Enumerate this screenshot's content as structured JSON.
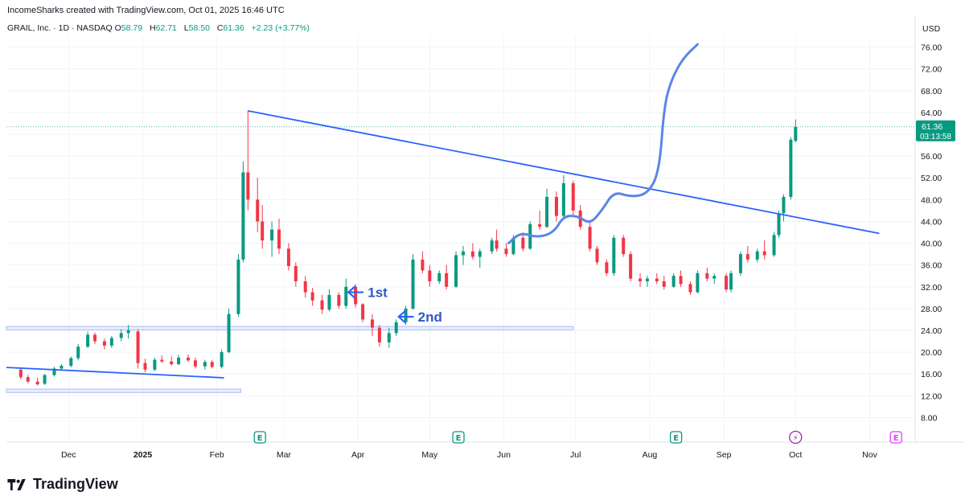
{
  "header": {
    "credit": "IncomeSharks created with TradingView.com, Oct 01, 2025 16:46 UTC"
  },
  "legend": {
    "symbol": "GRAIL, Inc. · 1D · NASDAQ",
    "open_label": "O",
    "open": "58.79",
    "high_label": "H",
    "high": "62.71",
    "low_label": "L",
    "low": "58.50",
    "close_label": "C",
    "close": "61.36",
    "change": "+2.23 (+3.77%)"
  },
  "colors": {
    "up": "#089981",
    "down": "#f23645",
    "drawing": "#2962ff",
    "curve": "#5b86e5",
    "zone": "#b3c5f5"
  },
  "branding": {
    "logo_text": "TradingView",
    "logo_icon": "tradingview-logo-icon"
  },
  "chart_data": {
    "type": "candlestick",
    "currency": "USD",
    "x_ticks": [
      "Dec",
      "2025",
      "Feb",
      "Mar",
      "Apr",
      "May",
      "Jun",
      "Jul",
      "Aug",
      "Sep",
      "Oct",
      "Nov"
    ],
    "y_ticks": [
      "76.00",
      "72.00",
      "68.00",
      "64.00",
      "60.00",
      "56.00",
      "52.00",
      "48.00",
      "44.00",
      "40.00",
      "36.00",
      "32.00",
      "28.00",
      "24.00",
      "20.00",
      "16.00",
      "12.00",
      "8.00"
    ],
    "ylim": [
      6,
      78
    ],
    "last_price": {
      "value": "61.36",
      "countdown": "03:13:58"
    },
    "earnings_markers": [
      {
        "date": "2025-02-19",
        "label": "E"
      },
      {
        "date": "2025-05-13",
        "label": "E"
      },
      {
        "date": "2025-08-12",
        "label": "E"
      },
      {
        "date": "2025-10-01",
        "label": "⚡"
      },
      {
        "date": "2025-11-12",
        "label": "E"
      }
    ],
    "annotations": [
      {
        "text": "1st",
        "date": "2025-03-28",
        "price": 31
      },
      {
        "text": "2nd",
        "date": "2025-04-18",
        "price": 26.5
      }
    ],
    "trendlines": [
      {
        "from": [
          "2025-02-14",
          64.3
        ],
        "to": [
          "2025-11-05",
          41.8
        ]
      },
      {
        "from": [
          "2024-11-05",
          17.2
        ],
        "to": [
          "2025-02-04",
          15.3
        ]
      }
    ],
    "zones": [
      {
        "from": "2024-11-05",
        "to": "2025-06-30",
        "low": 24.1,
        "high": 24.7
      },
      {
        "from": "2024-11-05",
        "to": "2025-02-11",
        "low": 12.6,
        "high": 13.2
      }
    ],
    "projection_path": [
      [
        "2025-06-03",
        40
      ],
      [
        "2025-06-08",
        42
      ],
      [
        "2025-06-15",
        41
      ],
      [
        "2025-06-22",
        42
      ],
      [
        "2025-06-26",
        45
      ],
      [
        "2025-07-02",
        45
      ],
      [
        "2025-07-07",
        43.5
      ],
      [
        "2025-07-12",
        46
      ],
      [
        "2025-07-17",
        49.5
      ],
      [
        "2025-07-24",
        48.5
      ],
      [
        "2025-07-31",
        49
      ],
      [
        "2025-08-05",
        53
      ],
      [
        "2025-08-07",
        65
      ],
      [
        "2025-08-10",
        70
      ],
      [
        "2025-08-15",
        74
      ],
      [
        "2025-08-21",
        76.5
      ]
    ],
    "candles": [
      {
        "d": "2024-11-11",
        "o": 16.8,
        "h": 17.2,
        "l": 15.0,
        "c": 15.4
      },
      {
        "d": "2024-11-14",
        "o": 15.4,
        "h": 15.8,
        "l": 14.3,
        "c": 14.6
      },
      {
        "d": "2024-11-18",
        "o": 14.6,
        "h": 15.3,
        "l": 13.9,
        "c": 14.1
      },
      {
        "d": "2024-11-21",
        "o": 14.2,
        "h": 16.0,
        "l": 14.0,
        "c": 15.8
      },
      {
        "d": "2024-11-25",
        "o": 15.8,
        "h": 17.3,
        "l": 15.5,
        "c": 17.0
      },
      {
        "d": "2024-11-28",
        "o": 17.0,
        "h": 17.8,
        "l": 16.6,
        "c": 17.5
      },
      {
        "d": "2024-12-02",
        "o": 17.5,
        "h": 19.2,
        "l": 17.2,
        "c": 18.9
      },
      {
        "d": "2024-12-05",
        "o": 18.9,
        "h": 21.5,
        "l": 18.5,
        "c": 21.0
      },
      {
        "d": "2024-12-09",
        "o": 21.0,
        "h": 23.8,
        "l": 20.8,
        "c": 23.2
      },
      {
        "d": "2024-12-12",
        "o": 23.2,
        "h": 23.6,
        "l": 21.5,
        "c": 22.0
      },
      {
        "d": "2024-12-16",
        "o": 22.0,
        "h": 22.5,
        "l": 20.5,
        "c": 21.2
      },
      {
        "d": "2024-12-19",
        "o": 21.2,
        "h": 23.0,
        "l": 20.8,
        "c": 22.6
      },
      {
        "d": "2024-12-23",
        "o": 22.6,
        "h": 24.2,
        "l": 22.0,
        "c": 23.5
      },
      {
        "d": "2024-12-26",
        "o": 23.5,
        "h": 25.0,
        "l": 22.5,
        "c": 24.0
      },
      {
        "d": "2024-12-30",
        "o": 23.8,
        "h": 24.2,
        "l": 17.0,
        "c": 18.0
      },
      {
        "d": "2025-01-02",
        "o": 18.0,
        "h": 18.8,
        "l": 16.3,
        "c": 16.8
      },
      {
        "d": "2025-01-06",
        "o": 16.8,
        "h": 19.0,
        "l": 16.5,
        "c": 18.6
      },
      {
        "d": "2025-01-09",
        "o": 18.6,
        "h": 19.4,
        "l": 18.0,
        "c": 18.3
      },
      {
        "d": "2025-01-13",
        "o": 18.3,
        "h": 19.2,
        "l": 17.5,
        "c": 17.8
      },
      {
        "d": "2025-01-16",
        "o": 17.8,
        "h": 19.5,
        "l": 17.6,
        "c": 19.0
      },
      {
        "d": "2025-01-20",
        "o": 19.0,
        "h": 19.6,
        "l": 18.2,
        "c": 18.5
      },
      {
        "d": "2025-01-23",
        "o": 18.5,
        "h": 19.0,
        "l": 17.0,
        "c": 17.4
      },
      {
        "d": "2025-01-27",
        "o": 17.4,
        "h": 18.6,
        "l": 16.8,
        "c": 18.2
      },
      {
        "d": "2025-01-30",
        "o": 18.2,
        "h": 18.5,
        "l": 17.0,
        "c": 17.3
      },
      {
        "d": "2025-02-03",
        "o": 17.3,
        "h": 20.5,
        "l": 17.0,
        "c": 20.0
      },
      {
        "d": "2025-02-06",
        "o": 20.0,
        "h": 28.0,
        "l": 19.8,
        "c": 27.0
      },
      {
        "d": "2025-02-10",
        "o": 27.0,
        "h": 38.0,
        "l": 26.5,
        "c": 37.0
      },
      {
        "d": "2025-02-12",
        "o": 37.0,
        "h": 55.0,
        "l": 36.5,
        "c": 53.0
      },
      {
        "d": "2025-02-14",
        "o": 53.0,
        "h": 64.3,
        "l": 46.0,
        "c": 48.0
      },
      {
        "d": "2025-02-18",
        "o": 48.0,
        "h": 52.0,
        "l": 42.0,
        "c": 44.0
      },
      {
        "d": "2025-02-20",
        "o": 44.0,
        "h": 47.0,
        "l": 39.0,
        "c": 40.5
      },
      {
        "d": "2025-02-24",
        "o": 40.5,
        "h": 44.0,
        "l": 37.5,
        "c": 42.5
      },
      {
        "d": "2025-02-27",
        "o": 42.5,
        "h": 44.5,
        "l": 38.0,
        "c": 39.0
      },
      {
        "d": "2025-03-03",
        "o": 39.0,
        "h": 40.0,
        "l": 35.0,
        "c": 35.8
      },
      {
        "d": "2025-03-06",
        "o": 35.8,
        "h": 36.5,
        "l": 32.0,
        "c": 33.0
      },
      {
        "d": "2025-03-10",
        "o": 33.0,
        "h": 34.0,
        "l": 30.0,
        "c": 31.0
      },
      {
        "d": "2025-03-13",
        "o": 31.0,
        "h": 31.8,
        "l": 28.5,
        "c": 29.5
      },
      {
        "d": "2025-03-17",
        "o": 29.5,
        "h": 30.5,
        "l": 27.0,
        "c": 27.8
      },
      {
        "d": "2025-03-20",
        "o": 27.8,
        "h": 31.5,
        "l": 27.5,
        "c": 30.5
      },
      {
        "d": "2025-03-24",
        "o": 30.5,
        "h": 31.0,
        "l": 28.0,
        "c": 28.5
      },
      {
        "d": "2025-03-27",
        "o": 28.5,
        "h": 33.5,
        "l": 28.0,
        "c": 32.0
      },
      {
        "d": "2025-03-31",
        "o": 32.0,
        "h": 32.5,
        "l": 28.2,
        "c": 28.8
      },
      {
        "d": "2025-04-03",
        "o": 28.8,
        "h": 29.0,
        "l": 25.5,
        "c": 26.0
      },
      {
        "d": "2025-04-07",
        "o": 26.0,
        "h": 27.0,
        "l": 23.0,
        "c": 24.5
      },
      {
        "d": "2025-04-10",
        "o": 24.5,
        "h": 25.0,
        "l": 21.0,
        "c": 21.8
      },
      {
        "d": "2025-04-14",
        "o": 21.8,
        "h": 24.5,
        "l": 20.8,
        "c": 23.5
      },
      {
        "d": "2025-04-17",
        "o": 23.5,
        "h": 26.0,
        "l": 23.0,
        "c": 25.5
      },
      {
        "d": "2025-04-21",
        "o": 25.5,
        "h": 28.5,
        "l": 25.0,
        "c": 28.0
      },
      {
        "d": "2025-04-24",
        "o": 28.0,
        "h": 38.0,
        "l": 27.8,
        "c": 37.0
      },
      {
        "d": "2025-04-28",
        "o": 37.0,
        "h": 38.5,
        "l": 34.5,
        "c": 35.0
      },
      {
        "d": "2025-05-01",
        "o": 35.0,
        "h": 36.0,
        "l": 32.0,
        "c": 33.0
      },
      {
        "d": "2025-05-05",
        "o": 33.0,
        "h": 35.0,
        "l": 32.5,
        "c": 34.5
      },
      {
        "d": "2025-05-08",
        "o": 34.5,
        "h": 36.0,
        "l": 31.5,
        "c": 32.0
      },
      {
        "d": "2025-05-12",
        "o": 32.0,
        "h": 38.5,
        "l": 31.8,
        "c": 37.8
      },
      {
        "d": "2025-05-15",
        "o": 37.8,
        "h": 39.5,
        "l": 36.0,
        "c": 38.5
      },
      {
        "d": "2025-05-19",
        "o": 38.5,
        "h": 40.0,
        "l": 37.0,
        "c": 37.5
      },
      {
        "d": "2025-05-22",
        "o": 37.5,
        "h": 39.0,
        "l": 35.5,
        "c": 38.5
      },
      {
        "d": "2025-05-27",
        "o": 38.5,
        "h": 41.0,
        "l": 38.0,
        "c": 40.5
      },
      {
        "d": "2025-05-29",
        "o": 40.5,
        "h": 42.5,
        "l": 38.5,
        "c": 39.0
      },
      {
        "d": "2025-06-02",
        "o": 39.0,
        "h": 40.0,
        "l": 37.5,
        "c": 38.0
      },
      {
        "d": "2025-06-05",
        "o": 38.0,
        "h": 41.5,
        "l": 37.8,
        "c": 41.0
      },
      {
        "d": "2025-06-09",
        "o": 41.0,
        "h": 42.0,
        "l": 38.5,
        "c": 39.0
      },
      {
        "d": "2025-06-12",
        "o": 39.0,
        "h": 44.0,
        "l": 38.8,
        "c": 43.5
      },
      {
        "d": "2025-06-16",
        "o": 43.5,
        "h": 46.0,
        "l": 42.5,
        "c": 43.0
      },
      {
        "d": "2025-06-19",
        "o": 43.0,
        "h": 50.0,
        "l": 42.8,
        "c": 48.5
      },
      {
        "d": "2025-06-23",
        "o": 48.5,
        "h": 49.5,
        "l": 44.0,
        "c": 45.0
      },
      {
        "d": "2025-06-26",
        "o": 45.0,
        "h": 52.5,
        "l": 44.5,
        "c": 51.0
      },
      {
        "d": "2025-06-30",
        "o": 51.0,
        "h": 51.5,
        "l": 45.0,
        "c": 46.0
      },
      {
        "d": "2025-07-03",
        "o": 46.0,
        "h": 47.0,
        "l": 42.5,
        "c": 43.0
      },
      {
        "d": "2025-07-07",
        "o": 43.0,
        "h": 44.0,
        "l": 38.5,
        "c": 39.0
      },
      {
        "d": "2025-07-10",
        "o": 39.0,
        "h": 39.5,
        "l": 36.0,
        "c": 36.5
      },
      {
        "d": "2025-07-14",
        "o": 36.5,
        "h": 37.0,
        "l": 34.0,
        "c": 34.5
      },
      {
        "d": "2025-07-17",
        "o": 34.5,
        "h": 41.5,
        "l": 34.0,
        "c": 41.0
      },
      {
        "d": "2025-07-21",
        "o": 41.0,
        "h": 41.5,
        "l": 37.5,
        "c": 38.0
      },
      {
        "d": "2025-07-24",
        "o": 38.0,
        "h": 38.5,
        "l": 33.0,
        "c": 33.5
      },
      {
        "d": "2025-07-28",
        "o": 33.5,
        "h": 34.5,
        "l": 32.0,
        "c": 33.0
      },
      {
        "d": "2025-07-31",
        "o": 33.0,
        "h": 34.0,
        "l": 32.0,
        "c": 33.5
      },
      {
        "d": "2025-08-04",
        "o": 33.5,
        "h": 34.5,
        "l": 32.5,
        "c": 33.0
      },
      {
        "d": "2025-08-07",
        "o": 33.0,
        "h": 34.0,
        "l": 31.5,
        "c": 32.0
      },
      {
        "d": "2025-08-11",
        "o": 32.0,
        "h": 34.5,
        "l": 31.8,
        "c": 34.0
      },
      {
        "d": "2025-08-14",
        "o": 34.0,
        "h": 35.0,
        "l": 32.0,
        "c": 32.5
      },
      {
        "d": "2025-08-18",
        "o": 32.5,
        "h": 33.0,
        "l": 30.5,
        "c": 31.0
      },
      {
        "d": "2025-08-21",
        "o": 31.0,
        "h": 35.0,
        "l": 30.8,
        "c": 34.5
      },
      {
        "d": "2025-08-25",
        "o": 34.5,
        "h": 35.5,
        "l": 33.0,
        "c": 33.5
      },
      {
        "d": "2025-08-28",
        "o": 33.5,
        "h": 34.5,
        "l": 32.5,
        "c": 34.0
      },
      {
        "d": "2025-09-02",
        "o": 34.0,
        "h": 34.5,
        "l": 31.0,
        "c": 31.5
      },
      {
        "d": "2025-09-04",
        "o": 31.5,
        "h": 35.0,
        "l": 31.0,
        "c": 34.5
      },
      {
        "d": "2025-09-08",
        "o": 34.5,
        "h": 38.5,
        "l": 34.0,
        "c": 38.0
      },
      {
        "d": "2025-09-11",
        "o": 38.0,
        "h": 39.5,
        "l": 36.5,
        "c": 37.0
      },
      {
        "d": "2025-09-15",
        "o": 37.0,
        "h": 39.0,
        "l": 36.5,
        "c": 38.5
      },
      {
        "d": "2025-09-18",
        "o": 38.5,
        "h": 40.5,
        "l": 37.0,
        "c": 37.8
      },
      {
        "d": "2025-09-22",
        "o": 37.8,
        "h": 42.0,
        "l": 37.5,
        "c": 41.5
      },
      {
        "d": "2025-09-24",
        "o": 41.5,
        "h": 46.0,
        "l": 41.0,
        "c": 45.5
      },
      {
        "d": "2025-09-26",
        "o": 45.5,
        "h": 49.0,
        "l": 44.0,
        "c": 48.5
      },
      {
        "d": "2025-09-29",
        "o": 48.5,
        "h": 59.5,
        "l": 48.0,
        "c": 59.0
      },
      {
        "d": "2025-10-01",
        "o": 58.79,
        "h": 62.71,
        "l": 58.5,
        "c": 61.36
      }
    ]
  }
}
